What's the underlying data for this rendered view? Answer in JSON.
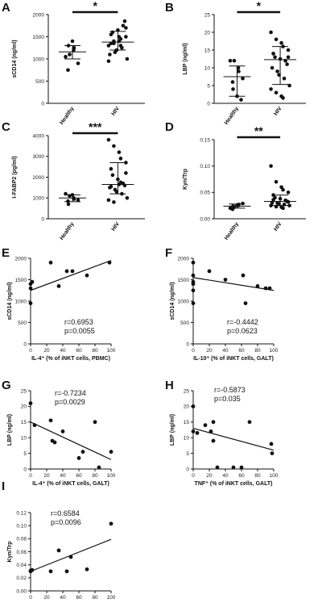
{
  "chart_data": [
    {
      "id": "A",
      "type": "scatter",
      "panel_label": "A",
      "ylabel": "sCD14 (ng/ml)",
      "ylim": [
        0,
        2000
      ],
      "yticks": [
        0,
        500,
        1000,
        1500,
        2000
      ],
      "categories": [
        "Healthy",
        "HIV"
      ],
      "groups": [
        {
          "name": "Healthy",
          "points": [
            1050,
            1100,
            1200,
            1250,
            900,
            750,
            1300,
            1400
          ],
          "mean": 1160,
          "sd_low": 1000,
          "sd_high": 1300
        },
        {
          "name": "HIV",
          "points": [
            1300,
            1350,
            1400,
            1450,
            1500,
            1550,
            1600,
            1650,
            1750,
            1850,
            1100,
            1150,
            1200,
            1250,
            1000,
            950,
            1400,
            1500,
            1300,
            1700,
            1350
          ],
          "mean": 1380,
          "sd_low": 1200,
          "sd_high": 1620
        }
      ],
      "significance": "*"
    },
    {
      "id": "B",
      "type": "scatter",
      "panel_label": "B",
      "ylabel": "LBP (ng/ml)",
      "ylim": [
        0,
        25
      ],
      "yticks": [
        0,
        5,
        10,
        15,
        20,
        25
      ],
      "categories": [
        "Healthy",
        "HIV"
      ],
      "groups": [
        {
          "name": "Healthy",
          "points": [
            12,
            12,
            10,
            9,
            7,
            6,
            4,
            2,
            1
          ],
          "mean": 7.5,
          "sd_low": 2,
          "sd_high": 10.5
        },
        {
          "name": "HIV",
          "points": [
            20,
            18,
            17,
            16,
            15,
            14,
            13,
            12.5,
            12,
            11,
            10,
            9,
            8,
            7,
            5,
            4,
            3,
            2,
            1.5,
            13,
            14
          ],
          "mean": 12.3,
          "sd_low": 5.3,
          "sd_high": 16
        }
      ],
      "significance": "*"
    },
    {
      "id": "C",
      "type": "scatter",
      "panel_label": "C",
      "ylabel": "I-FABP2 (pg/ml)",
      "ylim": [
        0,
        4000
      ],
      "yticks": [
        0,
        1000,
        2000,
        3000,
        4000
      ],
      "categories": [
        "Healthy",
        "HIV"
      ],
      "groups": [
        {
          "name": "Healthy",
          "points": [
            1200,
            1100,
            1000,
            950,
            900,
            850,
            700,
            1150
          ],
          "mean": 1000,
          "sd_low": 820,
          "sd_high": 1150
        },
        {
          "name": "HIV",
          "points": [
            3800,
            3500,
            3200,
            2900,
            2700,
            2400,
            2100,
            1900,
            1700,
            1600,
            1500,
            1400,
            1300,
            1200,
            1000,
            900,
            800,
            1650,
            1750,
            2200,
            1550
          ],
          "mean": 1650,
          "sd_low": 1200,
          "sd_high": 2700
        }
      ],
      "significance": "***"
    },
    {
      "id": "D",
      "type": "scatter",
      "panel_label": "D",
      "ylabel": "Kyn/Trp",
      "ylim": [
        0,
        0.15
      ],
      "yticks": [
        0.0,
        0.05,
        0.1,
        0.15
      ],
      "categories": [
        "Healthy",
        "HIV"
      ],
      "groups": [
        {
          "name": "Healthy",
          "points": [
            0.02,
            0.022,
            0.025,
            0.027,
            0.029,
            0.018,
            0.024,
            0.026
          ],
          "mean": 0.024,
          "sd_low": 0.02,
          "sd_high": 0.028
        },
        {
          "name": "HIV",
          "points": [
            0.1,
            0.07,
            0.06,
            0.055,
            0.05,
            0.045,
            0.04,
            0.038,
            0.035,
            0.033,
            0.03,
            0.03,
            0.028,
            0.027,
            0.025,
            0.025,
            0.023,
            0.022,
            0.02,
            0.032,
            0.036
          ],
          "mean": 0.033,
          "sd_low": 0.025,
          "sd_high": 0.045
        }
      ],
      "significance": "**"
    },
    {
      "id": "E",
      "type": "scatter",
      "panel_label": "E",
      "ylabel": "sCD14 (ng/ml)",
      "xlabel": "IL-4⁺ (% of iNKT cells, PBMC)",
      "xlim": [
        0,
        100
      ],
      "xticks": [
        0,
        20,
        40,
        60,
        80,
        100
      ],
      "ylim": [
        0,
        2000
      ],
      "yticks": [
        0,
        500,
        1000,
        1500,
        2000
      ],
      "points": [
        [
          0,
          950
        ],
        [
          0,
          1300
        ],
        [
          0,
          1400
        ],
        [
          2,
          1450
        ],
        [
          25,
          1900
        ],
        [
          35,
          1350
        ],
        [
          45,
          1700
        ],
        [
          52,
          1700
        ],
        [
          70,
          1600
        ],
        [
          98,
          1900
        ]
      ],
      "fit": [
        [
          0,
          1250
        ],
        [
          100,
          1950
        ]
      ],
      "stats": [
        "r=0.6953",
        "p=0.0055"
      ]
    },
    {
      "id": "F",
      "type": "scatter",
      "panel_label": "F",
      "ylabel": "sCD14 (ng/ml)",
      "xlabel": "IL-10⁺ (% of iNKT cells, GALT)",
      "xlim": [
        0,
        100
      ],
      "xticks": [
        0,
        20,
        40,
        60,
        80,
        100
      ],
      "ylim": [
        0,
        2000
      ],
      "yticks": [
        0,
        500,
        1000,
        1500,
        2000
      ],
      "points": [
        [
          0,
          1900
        ],
        [
          0,
          1600
        ],
        [
          0,
          1450
        ],
        [
          0,
          1400
        ],
        [
          0,
          1250
        ],
        [
          0,
          950
        ],
        [
          20,
          1700
        ],
        [
          40,
          1500
        ],
        [
          62,
          1600
        ],
        [
          65,
          950
        ],
        [
          80,
          1350
        ],
        [
          90,
          1300
        ],
        [
          95,
          1300
        ]
      ],
      "fit": [
        [
          0,
          1550
        ],
        [
          100,
          1250
        ]
      ],
      "stats": [
        "r=-0.4442",
        "p=0.0623"
      ]
    },
    {
      "id": "G",
      "type": "scatter",
      "panel_label": "G",
      "ylabel": "LBP (ng/ml)",
      "xlabel": "IL-4⁺ (% of iNKT cells, GALT)",
      "xlim": [
        0,
        100
      ],
      "xticks": [
        0,
        20,
        40,
        60,
        80,
        100
      ],
      "ylim": [
        0,
        25
      ],
      "yticks": [
        0,
        5,
        10,
        15,
        20,
        25
      ],
      "points": [
        [
          0,
          21
        ],
        [
          5,
          14
        ],
        [
          25,
          15.5
        ],
        [
          27,
          9
        ],
        [
          30,
          8.5
        ],
        [
          40,
          12
        ],
        [
          60,
          3.5
        ],
        [
          65,
          5.5
        ],
        [
          80,
          15
        ],
        [
          85,
          0.5
        ],
        [
          100,
          5.5
        ]
      ],
      "fit": [
        [
          0,
          15
        ],
        [
          100,
          3
        ]
      ],
      "stats": [
        "r=-0.7234",
        "p=0.0029"
      ]
    },
    {
      "id": "H",
      "type": "scatter",
      "panel_label": "H",
      "ylabel": "LBP (ng/ml)",
      "xlabel": "TNF⁺ (% of iNKT cells, GALT)",
      "xlim": [
        0,
        100
      ],
      "xticks": [
        0,
        20,
        40,
        60,
        80,
        100
      ],
      "ylim": [
        0,
        25
      ],
      "yticks": [
        0,
        5,
        10,
        15,
        20,
        25
      ],
      "points": [
        [
          0,
          20
        ],
        [
          0,
          12
        ],
        [
          5,
          11.5
        ],
        [
          15,
          14
        ],
        [
          22,
          12
        ],
        [
          25,
          15
        ],
        [
          25,
          9
        ],
        [
          30,
          0.5
        ],
        [
          50,
          0.5
        ],
        [
          60,
          0.5
        ],
        [
          70,
          15
        ],
        [
          97,
          8
        ],
        [
          98,
          5
        ]
      ],
      "fit": [
        [
          0,
          13
        ],
        [
          100,
          6
        ]
      ],
      "stats": [
        "r=-0.5873",
        "p=0.035"
      ]
    },
    {
      "id": "I",
      "type": "scatter",
      "panel_label": "I",
      "ylabel": "Kyn/Trp",
      "xlabel": "IL-4⁺ (% of iNKT cells, PBMC)",
      "xlim": [
        0,
        100
      ],
      "xticks": [
        0,
        20,
        40,
        60,
        80,
        100
      ],
      "ylim": [
        0,
        0.12
      ],
      "yticks": [
        0.0,
        0.02,
        0.04,
        0.06,
        0.08,
        0.1,
        0.12
      ],
      "points": [
        [
          0,
          0.03
        ],
        [
          0,
          0.031
        ],
        [
          2,
          0.032
        ],
        [
          25,
          0.03
        ],
        [
          35,
          0.062
        ],
        [
          45,
          0.03
        ],
        [
          50,
          0.052
        ],
        [
          70,
          0.033
        ],
        [
          100,
          0.103
        ]
      ],
      "fit": [
        [
          0,
          0.03
        ],
        [
          100,
          0.079
        ]
      ],
      "stats": [
        "r=0.6584",
        "p=0.0096"
      ]
    }
  ]
}
